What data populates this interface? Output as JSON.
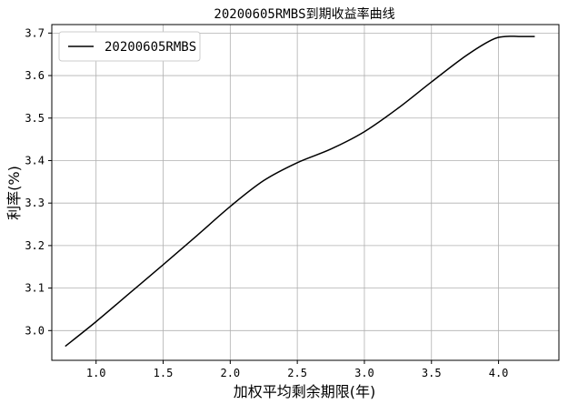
{
  "chart_data": {
    "type": "line",
    "title": "20200605RMBS到期收益率曲线",
    "xlabel": "加权平均剩余期限(年)",
    "ylabel": "利率(%)",
    "xlim": [
      0.67,
      4.45
    ],
    "ylim": [
      2.93,
      3.72
    ],
    "xticks": [
      1.0,
      1.5,
      2.0,
      2.5,
      3.0,
      3.5,
      4.0
    ],
    "xtick_labels": [
      "1.0",
      "1.5",
      "2.0",
      "2.5",
      "3.0",
      "3.5",
      "4.0"
    ],
    "yticks": [
      3.0,
      3.1,
      3.2,
      3.3,
      3.4,
      3.5,
      3.6,
      3.7
    ],
    "ytick_labels": [
      "3.0",
      "3.1",
      "3.2",
      "3.3",
      "3.4",
      "3.5",
      "3.6",
      "3.7"
    ],
    "grid": true,
    "legend_position": "top-left",
    "series": [
      {
        "name": "20200605RMBS",
        "color": "#000000",
        "x": [
          0.77,
          1.0,
          1.25,
          1.5,
          1.75,
          2.0,
          2.25,
          2.5,
          2.75,
          3.0,
          3.25,
          3.5,
          3.75,
          3.95,
          4.05,
          4.15,
          4.27
        ],
        "y": [
          2.963,
          3.021,
          3.088,
          3.155,
          3.223,
          3.292,
          3.353,
          3.395,
          3.427,
          3.468,
          3.523,
          3.585,
          3.645,
          3.684,
          3.692,
          3.692,
          3.692
        ]
      }
    ]
  }
}
